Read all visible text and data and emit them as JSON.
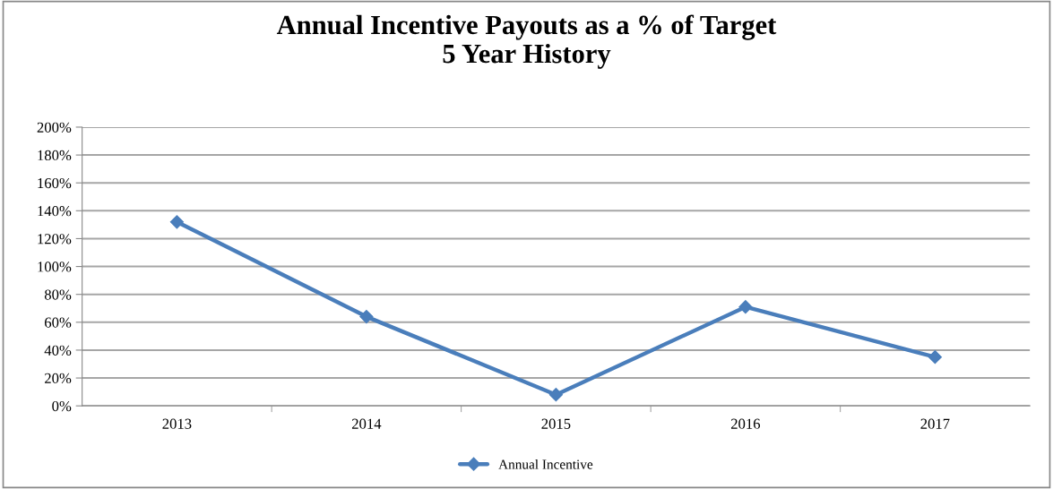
{
  "chart_data": {
    "type": "line",
    "title": "Annual Incentive Payouts as a % of Target\n5 Year History",
    "categories": [
      "2013",
      "2014",
      "2015",
      "2016",
      "2017"
    ],
    "series": [
      {
        "name": "Annual Incentive",
        "color": "#4a7ebb",
        "values": [
          132,
          64,
          8,
          71,
          35
        ]
      }
    ],
    "ylim": [
      0,
      200
    ],
    "yticks": [
      {
        "value": 0,
        "label": "0%"
      },
      {
        "value": 20,
        "label": "20%"
      },
      {
        "value": 40,
        "label": "40%"
      },
      {
        "value": 60,
        "label": "60%"
      },
      {
        "value": 80,
        "label": "80%"
      },
      {
        "value": 100,
        "label": "100%"
      },
      {
        "value": 120,
        "label": "120%"
      },
      {
        "value": 140,
        "label": "140%"
      },
      {
        "value": 160,
        "label": "160%"
      },
      {
        "value": 180,
        "label": "180%"
      },
      {
        "value": 200,
        "label": "200%"
      }
    ],
    "grid": "y",
    "legend": "bottom",
    "marker": "diamond",
    "line_style": "solid"
  }
}
